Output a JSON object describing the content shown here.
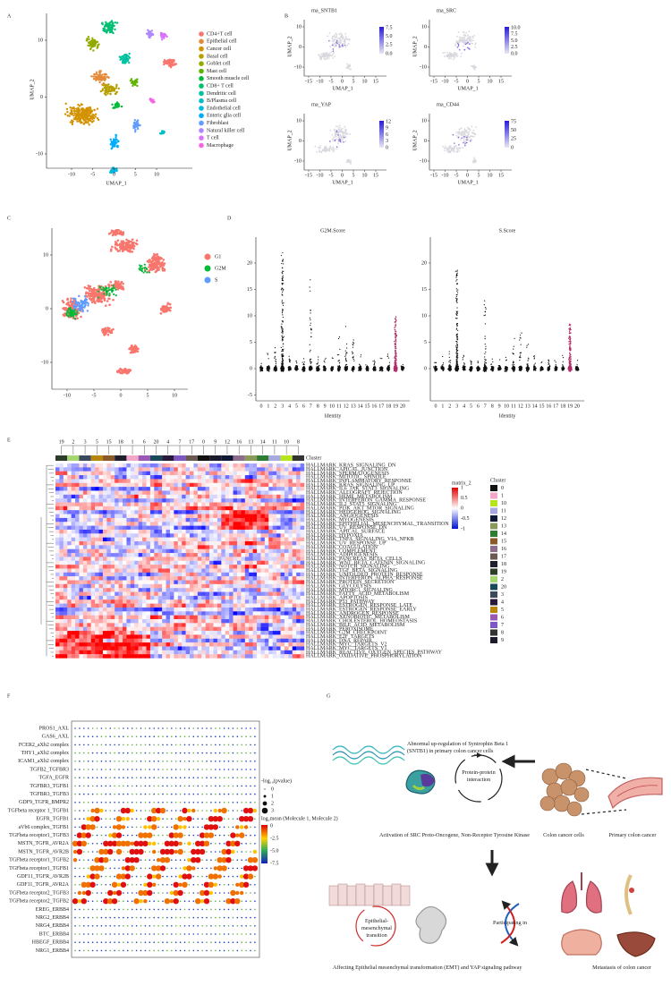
{
  "A": {
    "label": "A",
    "xlabel": "UMAP_1",
    "ylabel": "UMAP_2",
    "xticks": [
      -10,
      -5,
      0,
      5,
      10
    ],
    "yticks": [
      10,
      0,
      -10
    ],
    "legend": [
      {
        "name": "CD4+T cell",
        "color": "#f8766d"
      },
      {
        "name": "Epithelial cell",
        "color": "#e58a3a"
      },
      {
        "name": "Cancer cell",
        "color": "#d39200"
      },
      {
        "name": "Basal cell",
        "color": "#b79f00"
      },
      {
        "name": "Goblet cell",
        "color": "#93aa00"
      },
      {
        "name": "Mast cell",
        "color": "#5eb300"
      },
      {
        "name": "Smooth muscle cell",
        "color": "#00ba38"
      },
      {
        "name": "CD8+ T cell",
        "color": "#00bf74"
      },
      {
        "name": "Dendritic cell",
        "color": "#00c19f"
      },
      {
        "name": "B/Plasma cell",
        "color": "#00bfc4"
      },
      {
        "name": "Endothelial cell",
        "color": "#00b9e3"
      },
      {
        "name": "Enteric glia cell",
        "color": "#00adfa"
      },
      {
        "name": "Fibroblast",
        "color": "#619cff"
      },
      {
        "name": "Natural killer cell",
        "color": "#ae87ff"
      },
      {
        "name": "T cell",
        "color": "#db72fb"
      },
      {
        "name": "Macrophage",
        "color": "#f564e3"
      }
    ]
  },
  "B": {
    "label": "B",
    "xlabel": "UMAP_1",
    "ylabel": "UMAP_2",
    "xticks": [
      -15,
      -10,
      -5,
      0,
      5,
      10,
      15
    ],
    "yticks": [
      10,
      0,
      -10
    ],
    "plots": [
      {
        "title": "rna_SNTB1",
        "scale": [
          "7.5",
          "5.0",
          "2.5",
          "0.0"
        ]
      },
      {
        "title": "rna_SRC",
        "scale": [
          "10.0",
          "7.5",
          "5.0",
          "2.5",
          "0.0"
        ]
      },
      {
        "title": "rna_YAP",
        "scale": [
          "12",
          "9",
          "6",
          "3",
          "0"
        ]
      },
      {
        "title": "rna_CD44",
        "scale": [
          "75",
          "50",
          "25",
          "0"
        ]
      }
    ]
  },
  "C": {
    "label": "C",
    "xticks": [
      -10,
      -5,
      0,
      5,
      10
    ],
    "yticks": [
      10,
      0,
      -10
    ],
    "legend": [
      {
        "name": "G1",
        "color": "#f8766d"
      },
      {
        "name": "G2M",
        "color": "#00ba38"
      },
      {
        "name": "S",
        "color": "#619cff"
      }
    ]
  },
  "D": {
    "label": "D",
    "xlabel": "Identity",
    "categories": [
      0,
      1,
      2,
      3,
      4,
      5,
      6,
      7,
      8,
      9,
      10,
      11,
      12,
      13,
      14,
      15,
      16,
      17,
      18,
      19,
      20
    ],
    "plots": [
      {
        "title": "G2M.Score",
        "yticks": [
          20,
          15,
          10,
          5,
          0,
          -5
        ]
      },
      {
        "title": "S.Score",
        "yticks": [
          20,
          15,
          10,
          5,
          0
        ]
      }
    ]
  },
  "E": {
    "label": "E",
    "top_clusters": [
      "19",
      "2",
      "3",
      "5",
      "15",
      "18",
      "1",
      "6",
      "20",
      "4",
      "7",
      "17",
      "0",
      "9",
      "12",
      "16",
      "13",
      "14",
      "11",
      "10",
      "8"
    ],
    "cluster_title": "Cluster",
    "pathways": [
      "HALLMARK_KRAS_SIGNALING_DN",
      "HALLMARK_APICAL_JUNCTION",
      "HALLMARK_SPERMATOGENESIS",
      "HALLMARK_MITOTIC_SPINDLE",
      "HALLMARK_INFLAMMATORY_RESPONSE",
      "HALLMARK_KRAS_SIGNALING_UP",
      "HALLMARK_IL6_JAK_STAT3_SIGNALING",
      "HALLMARK_ALLOGRAFT_REJECTION",
      "HALLMARK_HEME_METABOLISM",
      "HALLMARK_INTERFERON_GAMMA_RESPONSE",
      "HALLMARK_IL2_STAT5_SIGNALING",
      "HALLMARK_PI3K_AKT_MTOR_SIGNALING",
      "HALLMARK_HEDGEHOG_SIGNALING",
      "HALLMARK_ANGIOGENESIS",
      "HALLMARK_MYOGENESIS",
      "HALLMARK_EPITHELIAL_MESENCHYMAL_TRANSITION",
      "HALLMARK_UV_RESPONSE_DN",
      "HALLMARK_APICAL_SURFACE",
      "HALLMARK_HYPOXIA",
      "HALLMARK_TNFA_SIGNALING_VIA_NFKB",
      "HALLMARK_UV_RESPONSE_UP",
      "HALLMARK_COAGULATION",
      "HALLMARK_COMPLEMENT",
      "HALLMARK_ADIPOGENESIS",
      "HALLMARK_PANCREAS_BETA_CELLS",
      "HALLMARK_WNT_BETA_CATENIN_SIGNALING",
      "HALLMARK_NOTCH_SIGNALING",
      "HALLMARK_TGF_BETA_SIGNALING",
      "HALLMARK_UNFOLDED_PROTEIN_RESPONSE",
      "HALLMARK_INTERFERON_ALPHA_RESPONSE",
      "HALLMARK_PROTEIN_SECRETION",
      "HALLMARK_GLYCOLYSIS",
      "HALLMARK_MTORC1_SIGNALING",
      "HALLMARK_FATTY_ACID_METABOLISM",
      "HALLMARK_APOPTOSIS",
      "HALLMARK_P53_PATHWAY",
      "HALLMARK_ESTROGEN_RESPONSE_LATE",
      "HALLMARK_ESTROGEN_RESPONSE_EARLY",
      "HALLMARK_ANDROGEN_RESPONSE",
      "HALLMARK_XENOBIOTIC_METABOLISM",
      "HALLMARK_CHOLESTEROL_HOMEOSTASIS",
      "HALLMARK_BILE_ACID_METABOLISM",
      "HALLMARK_PEROXISOME",
      "HALLMARK_G2M_CHECKPOINT",
      "HALLMARK_E2F_TARGETS",
      "HALLMARK_DNA_REPAIR",
      "HALLMARK_MYC_TARGETS_V2",
      "HALLMARK_MYC_TARGETS_V1",
      "HALLMARK_REACTIVE_OXYGEN_SPECIES_PATHWAY",
      "HALLMARK_OXIDATIVE_PHOSPHORYLATION"
    ],
    "scale_title": "matrix_2",
    "scale": [
      1,
      0.5,
      0,
      -0.5,
      -1
    ],
    "cluster_legend_title": "Cluster",
    "cluster_legend": [
      {
        "name": "0",
        "color": "#111111"
      },
      {
        "name": "1",
        "color": "#f2a7c8"
      },
      {
        "name": "10",
        "color": "#b6e51e"
      },
      {
        "name": "11",
        "color": "#a8a9e0"
      },
      {
        "name": "12",
        "color": "#101a38"
      },
      {
        "name": "13",
        "color": "#8a9a5b"
      },
      {
        "name": "14",
        "color": "#2f7d34"
      },
      {
        "name": "15",
        "color": "#8b5a2b"
      },
      {
        "name": "16",
        "color": "#8c6d8c"
      },
      {
        "name": "17",
        "color": "#6b5a50"
      },
      {
        "name": "18",
        "color": "#1f1f2e"
      },
      {
        "name": "19",
        "color": "#2c3e2a"
      },
      {
        "name": "2",
        "color": "#a5d66f"
      },
      {
        "name": "20",
        "color": "#1a4a5a"
      },
      {
        "name": "3",
        "color": "#3a4a5a"
      },
      {
        "name": "4",
        "color": "#2a1a3a"
      },
      {
        "name": "5",
        "color": "#b8860b"
      },
      {
        "name": "6",
        "color": "#9b59b6"
      },
      {
        "name": "7",
        "color": "#7e57c2"
      },
      {
        "name": "8",
        "color": "#333333"
      },
      {
        "name": "9",
        "color": "#1a1a2a"
      }
    ]
  },
  "F": {
    "label": "F",
    "rows": [
      "PROS1_AXL",
      "GAS6_AXL",
      "FCER2_aXb2 complex",
      "THY1_aXb2 complex",
      "ICAM1_aXb2 complex",
      "TGFB2_TGFBR3",
      "TGFA_EGFR",
      "TGFBR3_TGFB1",
      "TGFBR3_TGFB3",
      "GDF9_TGFR_BMPR2",
      "TGFbeta receptor 1_TGFB1",
      "EGFR_TGFB1",
      "aVb6 complex_TGFB1",
      "TGFbeta receptor1_TGFB3",
      "MSTN_TGFR_AVR2A",
      "MSTN_TGFR_AVR2B",
      "TGFbeta receptor1_TGFB2",
      "TGFbeta receptor1_TGFB1",
      "GDF11_TGFR_AVR2B",
      "GDF11_TGFR_AVR2A",
      "TGFbeta receptor2_TGFB3",
      "TGFbeta receptor2_TGFB2",
      "EREG_ERBB4",
      "NRG2_ERBB4",
      "NRG4_ERBB4",
      "BTC_ERBB4",
      "HBEGF_ERBB4",
      "NRG1_ERBB4"
    ],
    "size_title": "-log₁₀(pvalue)",
    "sizes": [
      0,
      1,
      2,
      3
    ],
    "color_title": "log₂mean (Molecule 1, Molecule 2)",
    "color_scale": [
      "0",
      "-2.5",
      "-5.0",
      "-7.5"
    ]
  },
  "G": {
    "label": "G",
    "upregulation": "Abnormal up-regulation of Syntrophin Beta 1 (SNTB1) in primary colon cancer cells",
    "ppi": "Protein-protein interaction",
    "activation": "Activation of SRC Proto-Oncogene, Non-Receptor Tyrosine Kinase",
    "cells": "Colon cancer cells",
    "primary": "Primary colon cancer",
    "emt_circle": "Epithelial-mesenchymal transition",
    "participating": "Participating in",
    "affecting": "Affecting Epithelial mesenchymal transformation (EMT)  and YAP signaling pathway",
    "metastasis": "Metastasis of colon cancer"
  }
}
